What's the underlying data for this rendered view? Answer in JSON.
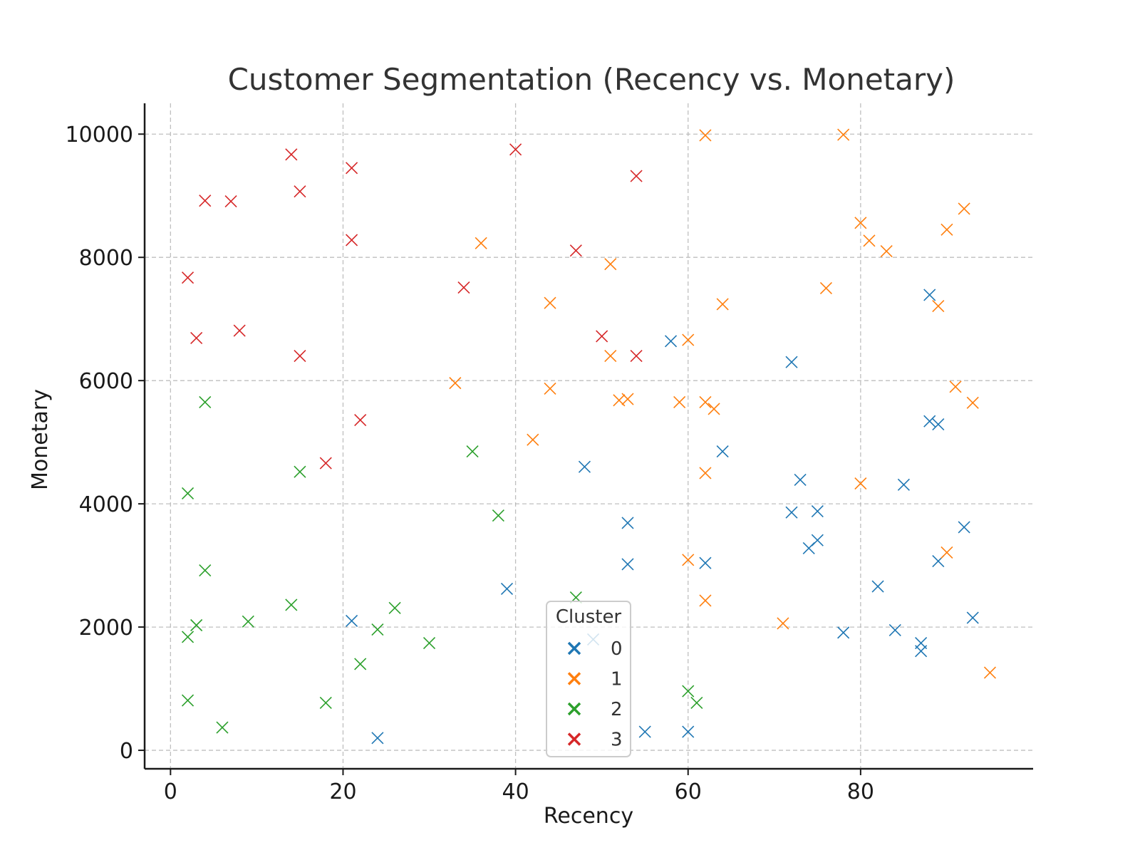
{
  "chart_data": {
    "type": "scatter",
    "title": "Customer Segmentation (Recency vs. Monetary)",
    "xlabel": "Recency",
    "ylabel": "Monetary",
    "xlim": [
      -3,
      100
    ],
    "ylim": [
      -300,
      10500
    ],
    "xticks": [
      0,
      20,
      40,
      60,
      80
    ],
    "yticks": [
      0,
      2000,
      4000,
      6000,
      8000,
      10000
    ],
    "grid": true,
    "marker": "x",
    "legend": {
      "title": "Cluster",
      "placement": "lower-center"
    },
    "series": [
      {
        "name": "0",
        "color": "#1f77b4",
        "points": [
          [
            88,
            7390
          ],
          [
            58,
            6640
          ],
          [
            72,
            6300
          ],
          [
            89,
            5290
          ],
          [
            88,
            5340
          ],
          [
            64,
            4850
          ],
          [
            48,
            4600
          ],
          [
            73,
            4390
          ],
          [
            85,
            4310
          ],
          [
            72,
            3860
          ],
          [
            75,
            3880
          ],
          [
            53,
            3690
          ],
          [
            92,
            3620
          ],
          [
            75,
            3410
          ],
          [
            74,
            3280
          ],
          [
            53,
            3020
          ],
          [
            62,
            3040
          ],
          [
            89,
            3070
          ],
          [
            39,
            2620
          ],
          [
            82,
            2660
          ],
          [
            21,
            2100
          ],
          [
            93,
            2150
          ],
          [
            78,
            1910
          ],
          [
            84,
            1950
          ],
          [
            49,
            1800
          ],
          [
            87,
            1740
          ],
          [
            87,
            1610
          ],
          [
            55,
            300
          ],
          [
            60,
            300
          ],
          [
            24,
            200
          ]
        ]
      },
      {
        "name": "1",
        "color": "#ff7f0e",
        "points": [
          [
            62,
            9980
          ],
          [
            78,
            9990
          ],
          [
            92,
            8790
          ],
          [
            80,
            8560
          ],
          [
            90,
            8450
          ],
          [
            81,
            8270
          ],
          [
            36,
            8230
          ],
          [
            83,
            8100
          ],
          [
            51,
            7890
          ],
          [
            76,
            7500
          ],
          [
            44,
            7260
          ],
          [
            64,
            7240
          ],
          [
            89,
            7210
          ],
          [
            60,
            6660
          ],
          [
            51,
            6400
          ],
          [
            33,
            5960
          ],
          [
            91,
            5900
          ],
          [
            44,
            5870
          ],
          [
            52,
            5680
          ],
          [
            53,
            5700
          ],
          [
            59,
            5650
          ],
          [
            62,
            5650
          ],
          [
            93,
            5640
          ],
          [
            63,
            5540
          ],
          [
            42,
            5040
          ],
          [
            62,
            4500
          ],
          [
            80,
            4330
          ],
          [
            90,
            3210
          ],
          [
            60,
            3090
          ],
          [
            62,
            2430
          ],
          [
            71,
            2060
          ],
          [
            95,
            1260
          ]
        ]
      },
      {
        "name": "2",
        "color": "#2ca02c",
        "points": [
          [
            4,
            5650
          ],
          [
            35,
            4850
          ],
          [
            15,
            4520
          ],
          [
            2,
            4170
          ],
          [
            38,
            3810
          ],
          [
            4,
            2920
          ],
          [
            47,
            2480
          ],
          [
            14,
            2360
          ],
          [
            26,
            2310
          ],
          [
            9,
            2090
          ],
          [
            3,
            2030
          ],
          [
            24,
            1960
          ],
          [
            2,
            1840
          ],
          [
            30,
            1740
          ],
          [
            22,
            1400
          ],
          [
            60,
            960
          ],
          [
            2,
            810
          ],
          [
            18,
            770
          ],
          [
            61,
            770
          ],
          [
            6,
            370
          ]
        ]
      },
      {
        "name": "3",
        "color": "#d62728",
        "points": [
          [
            40,
            9750
          ],
          [
            14,
            9670
          ],
          [
            21,
            9450
          ],
          [
            54,
            9320
          ],
          [
            15,
            9070
          ],
          [
            4,
            8920
          ],
          [
            7,
            8910
          ],
          [
            21,
            8280
          ],
          [
            47,
            8110
          ],
          [
            2,
            7670
          ],
          [
            34,
            7510
          ],
          [
            8,
            6810
          ],
          [
            50,
            6720
          ],
          [
            3,
            6690
          ],
          [
            15,
            6400
          ],
          [
            54,
            6400
          ],
          [
            22,
            5360
          ],
          [
            18,
            4660
          ]
        ]
      }
    ]
  }
}
